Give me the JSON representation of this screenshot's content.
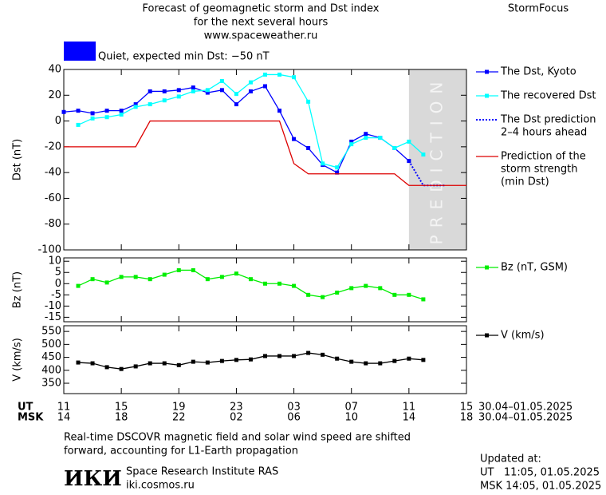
{
  "header": {
    "title": [
      "Forecast of geomagnetic storm and Dst index",
      "for the next several hours",
      "www.spaceweather.ru"
    ],
    "brand": "StormFocus",
    "status": "Quiet, expected min Dst: −50 nT",
    "status_color": "#0000ff"
  },
  "chart_data": [
    {
      "type": "line",
      "ylabel": "Dst (nT)",
      "xlim": [
        0,
        28
      ],
      "ylim": [
        -100,
        40
      ],
      "yticks": [
        40,
        20,
        0,
        -20,
        -40,
        -60,
        -80,
        -100
      ],
      "prediction_region": {
        "xlim": [
          24,
          28
        ],
        "label": "PREDICTION",
        "color": "#d9d9d9"
      },
      "series": [
        {
          "name": "The Dst, Kyoto",
          "color": "#0000ff",
          "markers": true,
          "x": [
            0,
            1,
            2,
            3,
            4,
            5,
            6,
            7,
            8,
            9,
            10,
            11,
            12,
            13,
            14,
            15,
            16,
            17,
            18,
            19,
            20,
            21,
            22,
            23,
            24
          ],
          "values": [
            7,
            8,
            6,
            8,
            8,
            13,
            23,
            23,
            24,
            26,
            22,
            24,
            13,
            23,
            27,
            8,
            -14,
            -21,
            -34,
            -40,
            -16,
            -10,
            -13,
            -21,
            -31
          ]
        },
        {
          "name": "The recovered Dst",
          "color": "#00ffff",
          "markers": true,
          "x": [
            1,
            2,
            3,
            4,
            5,
            6,
            7,
            8,
            9,
            10,
            11,
            12,
            13,
            14,
            15,
            16,
            17,
            18,
            19,
            20,
            21,
            22,
            23,
            24,
            25
          ],
          "values": [
            -3,
            2,
            3,
            5,
            11,
            13,
            16,
            19,
            23,
            24,
            31,
            21,
            30,
            36,
            36,
            34,
            15,
            -33,
            -36,
            -18,
            -13,
            -13,
            -21,
            -16,
            -26
          ]
        },
        {
          "name": [
            "The Dst prediction",
            "2–4 hours ahead"
          ],
          "color": "#0000ff",
          "dotted": true,
          "x": [
            24,
            25,
            26.5
          ],
          "values": [
            -31,
            -50,
            -50
          ]
        },
        {
          "name": [
            "Prediction of the",
            "storm strength",
            "(min Dst)"
          ],
          "color": "#dd0000",
          "x": [
            0,
            5,
            6,
            15,
            16,
            17,
            23,
            24,
            28
          ],
          "values": [
            -20,
            -20,
            0,
            0,
            -33,
            -41,
            -41,
            -50,
            -50
          ]
        }
      ]
    },
    {
      "type": "line",
      "ylabel": "Bz (nT)",
      "xlim": [
        0,
        28
      ],
      "ylim": [
        -17,
        11.5
      ],
      "yticks": [
        10,
        5,
        0,
        -5,
        -10,
        -15
      ],
      "series": [
        {
          "name": "Bz (nT, GSM)",
          "color": "#00ee00",
          "markers": true,
          "x": [
            1,
            2,
            3,
            4,
            5,
            6,
            7,
            8,
            9,
            10,
            11,
            12,
            13,
            14,
            15,
            16,
            17,
            18,
            19,
            20,
            21,
            22,
            23,
            24,
            25
          ],
          "values": [
            -1,
            2,
            0.5,
            3,
            3,
            2,
            4,
            6,
            6,
            2,
            3,
            4.5,
            2,
            0,
            0,
            -1,
            -5,
            -6,
            -4,
            -2,
            -1,
            -2,
            -5,
            -5,
            -7
          ]
        }
      ]
    },
    {
      "type": "line",
      "ylabel": "V (km/s)",
      "xlim": [
        0,
        28
      ],
      "ylim": [
        310,
        572
      ],
      "yticks": [
        550,
        500,
        450,
        400,
        350
      ],
      "series": [
        {
          "name": "V (km/s)",
          "color": "#000000",
          "markers": true,
          "x": [
            1,
            2,
            3,
            4,
            5,
            6,
            7,
            8,
            9,
            10,
            11,
            12,
            13,
            14,
            15,
            16,
            17,
            18,
            19,
            20,
            21,
            22,
            23,
            24,
            25
          ],
          "values": [
            430,
            427,
            412,
            405,
            415,
            427,
            427,
            420,
            433,
            430,
            436,
            440,
            442,
            455,
            455,
            455,
            467,
            460,
            445,
            433,
            427,
            427,
            436,
            445,
            440
          ]
        }
      ]
    }
  ],
  "time_axis": {
    "rows": [
      {
        "name": "UT",
        "range": "30.04–01.05.2025",
        "ticks": [
          {
            "value": 0,
            "label": "11"
          },
          {
            "value": 4,
            "label": "15"
          },
          {
            "value": 8,
            "label": "19"
          },
          {
            "value": 12,
            "label": "23"
          },
          {
            "value": 16,
            "label": "03"
          },
          {
            "value": 20,
            "label": "07"
          },
          {
            "value": 24,
            "label": "11"
          },
          {
            "value": 28,
            "label": "15"
          }
        ]
      },
      {
        "name": "MSK",
        "range": "30.04–01.05.2025",
        "ticks": [
          {
            "value": 0,
            "label": "14"
          },
          {
            "value": 4,
            "label": "18"
          },
          {
            "value": 8,
            "label": "22"
          },
          {
            "value": 12,
            "label": "02"
          },
          {
            "value": 16,
            "label": "06"
          },
          {
            "value": 20,
            "label": "10"
          },
          {
            "value": 24,
            "label": "14"
          },
          {
            "value": 28,
            "label": "18"
          }
        ]
      }
    ]
  },
  "footer": {
    "note": [
      "Real-time DSCOVR magnetic field and solar wind speed are shifted",
      "forward, accounting for L1-Earth propagation"
    ],
    "logo": "ИКИ",
    "institute": "Space Research Institute RAS",
    "site": "iki.cosmos.ru",
    "updated": [
      "Updated at:",
      "UT   11:05, 01.05.2025",
      "MSK 14:05, 01.05.2025"
    ]
  }
}
